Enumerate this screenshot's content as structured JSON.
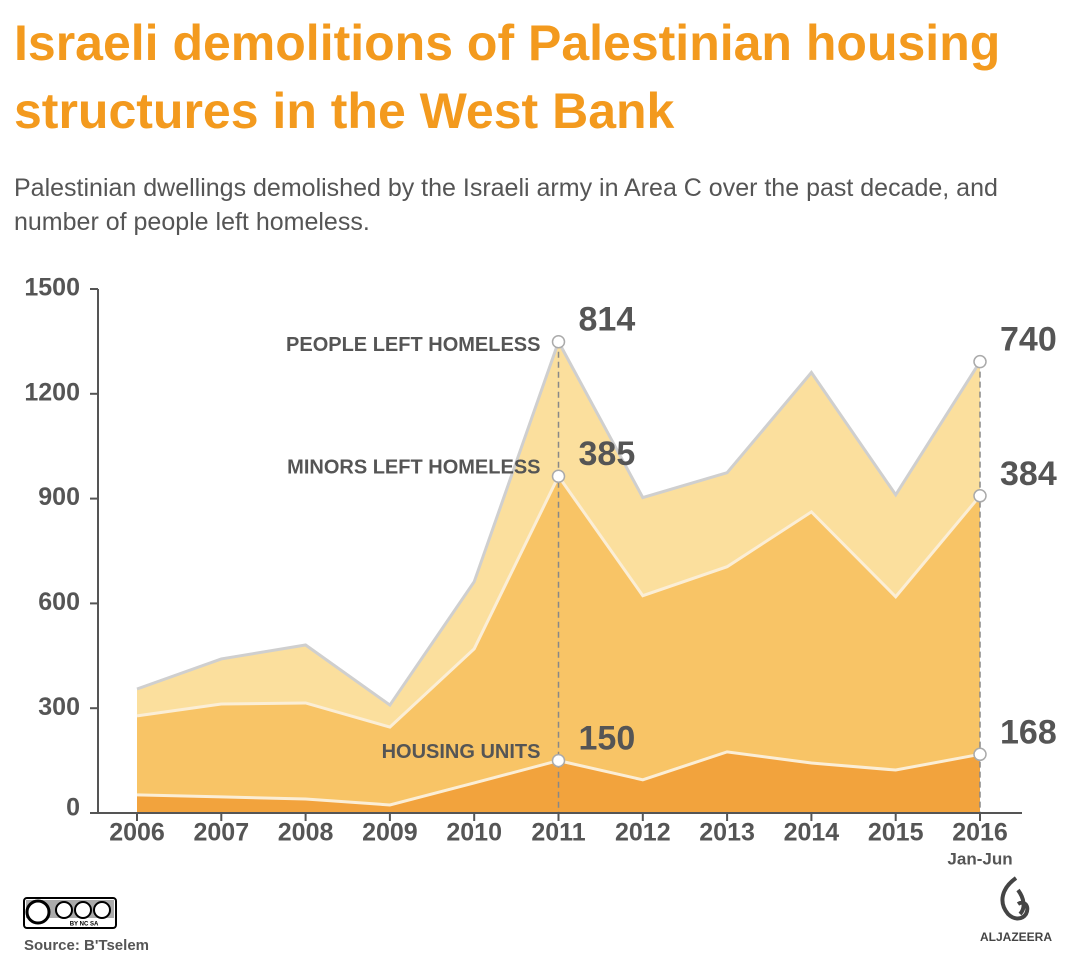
{
  "chart_data": {
    "type": "stacked-area",
    "title": "Israeli demolitions of Palestinian housing structures in the West Bank",
    "subtitle": "Palestinian dwellings demolished by the Israeli army in Area C over the past decade, and number of people left homeless.",
    "categories": [
      "2006",
      "2007",
      "2008",
      "2009",
      "2010",
      "2011",
      "2012",
      "2013",
      "2014",
      "2015",
      "2016"
    ],
    "last_category_note": "Jan-Jun",
    "series": [
      {
        "name": "HOUSING UNITS",
        "color": "#f2a33d",
        "values": [
          52,
          46,
          40,
          23,
          86,
          150,
          95,
          175,
          143,
          123,
          168
        ]
      },
      {
        "name": "PEOPLE LEFT HOMELESS",
        "color": "#f8c466",
        "values": [
          226,
          266,
          275,
          223,
          384,
          814,
          527,
          530,
          719,
          496,
          740
        ]
      },
      {
        "name": "MINORS LEFT HOMELESS",
        "color": "#fbdf9d",
        "values": [
          77,
          129,
          166,
          63,
          192,
          385,
          281,
          269,
          399,
          292,
          384
        ]
      }
    ],
    "ylim": [
      0,
      1500
    ],
    "yticks": [
      0,
      300,
      600,
      900,
      1200,
      1500
    ]
  },
  "footer": {
    "source": "Source: B'Tselem",
    "license": "BY NC SA",
    "logo": "ALJAZEERA"
  }
}
